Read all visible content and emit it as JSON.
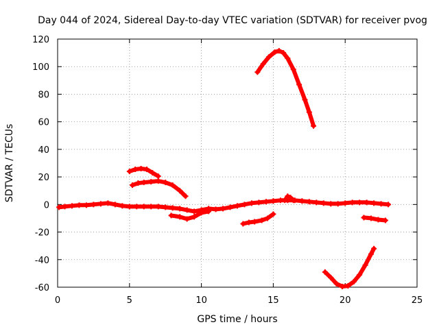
{
  "chart_data": {
    "type": "scatter",
    "title": "Day 044 of 2024, Sidereal Day-to-day VTEC variation (SDTVAR) for receiver pvog",
    "xlabel": "GPS time / hours",
    "ylabel": "SDTVAR / TECUs",
    "xlim": [
      0,
      25
    ],
    "ylim": [
      -60,
      120
    ],
    "xticks": [
      0,
      5,
      10,
      15,
      20,
      25
    ],
    "yticks": [
      -60,
      -40,
      -20,
      0,
      20,
      40,
      60,
      80,
      100,
      120
    ],
    "grid": true,
    "marker_color": "#ff0000",
    "series": [
      {
        "name": "main-trace",
        "points": [
          [
            0.1,
            -2
          ],
          [
            0.5,
            -1.5
          ],
          [
            1,
            -1
          ],
          [
            1.5,
            -0.5
          ],
          [
            2,
            -0.5
          ],
          [
            2.5,
            0
          ],
          [
            3,
            0.5
          ],
          [
            3.5,
            1
          ],
          [
            4,
            0
          ],
          [
            4.5,
            -1
          ],
          [
            5,
            -1.5
          ],
          [
            5.5,
            -1.5
          ],
          [
            6,
            -1.5
          ],
          [
            6.5,
            -1.5
          ],
          [
            7,
            -1.5
          ],
          [
            7.5,
            -2
          ],
          [
            8,
            -2.5
          ],
          [
            8.5,
            -3
          ],
          [
            9,
            -4
          ],
          [
            9.5,
            -5
          ],
          [
            10,
            -4
          ],
          [
            10.5,
            -3
          ],
          [
            11,
            -3.5
          ],
          [
            11.5,
            -3
          ],
          [
            12,
            -2
          ],
          [
            12.5,
            -1
          ],
          [
            13,
            0
          ],
          [
            13.5,
            1
          ],
          [
            14,
            1.5
          ],
          [
            14.5,
            2
          ],
          [
            15,
            2.5
          ],
          [
            15.5,
            3
          ],
          [
            16,
            3
          ],
          [
            16.5,
            3
          ],
          [
            17,
            2.5
          ],
          [
            17.5,
            2
          ],
          [
            18,
            1.5
          ],
          [
            18.5,
            1
          ],
          [
            19,
            0.5
          ],
          [
            19.5,
            0.5
          ],
          [
            20,
            1
          ],
          [
            20.5,
            1.5
          ],
          [
            21,
            1.5
          ],
          [
            21.5,
            1.5
          ],
          [
            22,
            1
          ],
          [
            22.5,
            0.5
          ],
          [
            23,
            0
          ]
        ]
      },
      {
        "name": "dip-8h-10h",
        "points": [
          [
            7.9,
            -8
          ],
          [
            8.5,
            -9
          ],
          [
            9,
            -10.5
          ],
          [
            9.5,
            -9
          ],
          [
            10,
            -6
          ],
          [
            10.5,
            -5
          ]
        ]
      },
      {
        "name": "arc-5h-6h",
        "points": [
          [
            5,
            24
          ],
          [
            5.4,
            25.5
          ],
          [
            5.8,
            26
          ],
          [
            6.2,
            25.5
          ],
          [
            6.6,
            23
          ],
          [
            7,
            20.5
          ]
        ]
      },
      {
        "name": "arc-5h-9h",
        "points": [
          [
            5.2,
            14
          ],
          [
            5.6,
            15.5
          ],
          [
            6,
            16
          ],
          [
            6.5,
            16.5
          ],
          [
            7,
            17
          ],
          [
            7.5,
            16
          ],
          [
            8,
            14
          ],
          [
            8.5,
            10
          ],
          [
            8.9,
            6
          ]
        ]
      },
      {
        "name": "arc-14h-18h",
        "points": [
          [
            13.9,
            96
          ],
          [
            14.3,
            102
          ],
          [
            14.7,
            107
          ],
          [
            15.1,
            110.5
          ],
          [
            15.4,
            111.5
          ],
          [
            15.7,
            110
          ],
          [
            16,
            106
          ],
          [
            16.4,
            98
          ],
          [
            16.8,
            87
          ],
          [
            17.2,
            76
          ],
          [
            17.5,
            67
          ],
          [
            17.8,
            57
          ]
        ]
      },
      {
        "name": "segment-13h-15h",
        "points": [
          [
            12.9,
            -14
          ],
          [
            13.3,
            -13
          ],
          [
            13.7,
            -12.5
          ],
          [
            14.2,
            -11.5
          ],
          [
            14.6,
            -10
          ],
          [
            15,
            -7
          ]
        ]
      },
      {
        "name": "spike-16h",
        "points": [
          [
            15.8,
            3
          ],
          [
            16,
            6
          ],
          [
            16.2,
            5
          ],
          [
            16.4,
            3
          ]
        ]
      },
      {
        "name": "arc-19h-22h",
        "points": [
          [
            18.6,
            -49
          ],
          [
            19,
            -53
          ],
          [
            19.4,
            -57.5
          ],
          [
            19.8,
            -59.5
          ],
          [
            20.2,
            -59
          ],
          [
            20.6,
            -56
          ],
          [
            21,
            -51
          ],
          [
            21.4,
            -44
          ],
          [
            21.8,
            -36
          ],
          [
            22,
            -32
          ]
        ]
      },
      {
        "name": "segment-21h-23h",
        "points": [
          [
            21.3,
            -9.5
          ],
          [
            21.8,
            -10
          ],
          [
            22.3,
            -11
          ],
          [
            22.8,
            -11.5
          ]
        ]
      }
    ]
  }
}
